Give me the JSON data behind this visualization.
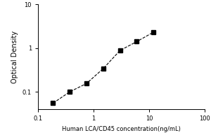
{
  "x": [
    0.187,
    0.375,
    0.75,
    1.5,
    3.0,
    6.0,
    12.0
  ],
  "y": [
    0.055,
    0.1,
    0.155,
    0.34,
    0.88,
    1.4,
    2.3
  ],
  "xlabel": "Human LCA/CD45 concentration(ng/mL)",
  "ylabel": "Optical Density",
  "xlim": [
    0.1,
    100
  ],
  "ylim": [
    0.04,
    10
  ],
  "xticks": [
    0.1,
    1,
    10,
    100
  ],
  "yticks": [
    0.1,
    1,
    10
  ],
  "marker": "s",
  "marker_color": "black",
  "marker_size": 4,
  "line_color": "black",
  "line_style": "--",
  "line_width": 0.8,
  "background_color": "#ffffff",
  "xlabel_fontsize": 6,
  "ylabel_fontsize": 7,
  "tick_fontsize": 6
}
